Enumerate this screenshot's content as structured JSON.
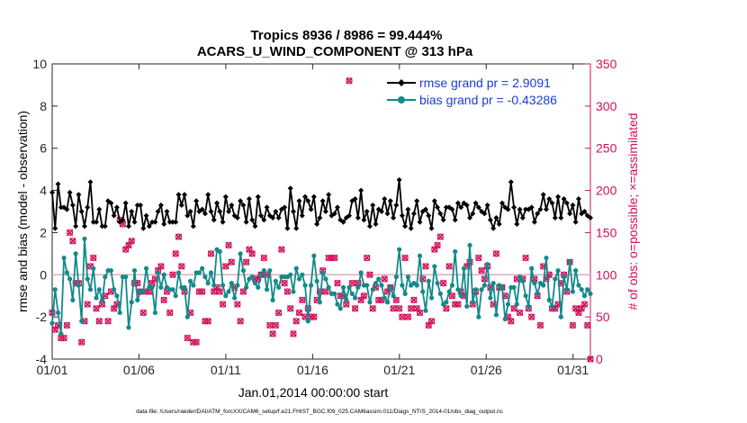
{
  "chart_data": {
    "type": "line",
    "title": "Tropics 8936 / 8986 = 99.444%",
    "subtitle": "ACARS_U_WIND_COMPONENT @ 313 hPa",
    "xlabel": "Jan.01,2014 00:00:00 start",
    "ylabel_left": "rmse and bias (model - observation)",
    "ylabel_right": "# of obs: o=possible; ×=assimilated",
    "footnote": "data file: /Users/raeder/DAI/ATM_forcXX/CAM6_setup/f.e21.FHIST_BGC.f09_025.CAM6assim.011/Diags_NTrS_2014-01/obs_diag_output.nc",
    "x_range": [
      1,
      32
    ],
    "xticks": [
      1,
      6,
      11,
      16,
      21,
      26,
      31
    ],
    "xtick_labels": [
      "01/01",
      "01/06",
      "01/11",
      "01/16",
      "01/21",
      "01/26",
      "01/31"
    ],
    "ylim_left": [
      -4,
      10
    ],
    "yticks_left": [
      -4,
      -2,
      0,
      2,
      4,
      6,
      8,
      10
    ],
    "ylim_right": [
      0,
      350
    ],
    "yticks_right": [
      0,
      50,
      100,
      150,
      200,
      250,
      300,
      350
    ],
    "zero_line": 0,
    "obs_reference_line": 100,
    "legend_position": "top-right",
    "colors": {
      "rmse": "#000000",
      "bias": "#138a8a",
      "obs": "#d0105a",
      "right_axis": "#d0105a",
      "legend_text": "#1a3dd6"
    },
    "series": [
      {
        "name": "rmse grand pr = 2.9091",
        "marker": "diamond",
        "color": "#000000",
        "values": [
          3.9,
          2.2,
          4.3,
          3.2,
          3.2,
          3.1,
          3.9,
          3.3,
          2.3,
          3.8,
          3.0,
          2.3,
          3.2,
          4.4,
          2.5,
          2.5,
          3.1,
          2.3,
          2.3,
          3.5,
          3.4,
          2.8,
          3.2,
          2.5,
          2.6,
          3.4,
          2.3,
          3.0,
          2.5,
          3.3,
          3.3,
          2.2,
          2.8,
          2.3,
          2.5,
          2.5,
          3.0,
          3.3,
          2.4,
          3.0,
          2.5,
          2.5,
          2.5,
          3.8,
          3.3,
          3.8,
          2.8,
          3.0,
          2.3,
          3.5,
          3.0,
          3.1,
          2.9,
          3.8,
          3.0,
          2.6,
          3.4,
          3.0,
          2.5,
          3.7,
          3.0,
          3.3,
          2.8,
          2.7,
          3.5,
          3.3,
          2.5,
          3.6,
          2.6,
          2.3,
          3.7,
          2.8,
          2.6,
          3.2,
          2.8,
          2.7,
          3.0,
          2.7,
          3.1,
          3.2,
          2.2,
          4.1,
          3.0,
          2.2,
          3.5,
          2.8,
          3.7,
          3.5,
          3.1,
          3.7,
          2.4,
          2.7,
          3.5,
          3.0,
          3.8,
          2.8,
          2.9,
          3.2,
          2.6,
          2.5,
          2.7,
          2.8,
          3.5,
          3.6,
          2.7,
          4.0,
          2.6,
          3.0,
          2.3,
          3.3,
          2.4,
          3.1,
          3.0,
          3.6,
          2.9,
          3.5,
          2.7,
          3.3,
          4.5,
          2.8,
          2.3,
          3.1,
          2.2,
          2.9,
          3.5,
          2.5,
          3.0,
          3.1,
          2.8,
          2.2,
          3.5,
          3.2,
          2.9,
          2.6,
          3.2,
          3.2,
          3.1,
          2.6,
          3.4,
          3.2,
          3.4,
          3.3,
          2.7,
          2.9,
          3.4,
          3.2,
          3.0,
          2.9,
          3.3,
          2.6,
          2.2,
          2.7,
          2.4,
          3.4,
          3.2,
          3.1,
          4.4,
          3.2,
          2.4,
          3.1,
          2.7,
          3.1,
          3.1,
          3.2,
          2.5,
          2.9,
          3.1,
          3.8,
          3.1,
          3.6,
          3.4,
          2.7,
          3.7,
          2.7,
          3.6,
          3.4,
          2.9,
          3.3,
          2.5,
          3.6,
          2.9,
          3.0,
          2.8,
          2.7
        ]
      },
      {
        "name": "bias grand pr = -0.43286",
        "marker": "circle",
        "color": "#138a8a",
        "values": [
          -2.3,
          -0.7,
          -1.8,
          -2.8,
          0.8,
          0.1,
          -0.2,
          -1.2,
          1.0,
          -0.5,
          -2.2,
          1.7,
          -0.2,
          -0.7,
          0.3,
          -1.1,
          -0.7,
          -1.2,
          -0.1,
          0.2,
          0.2,
          -0.7,
          -1.0,
          -1.8,
          -0.1,
          -0.1,
          -2.5,
          -1.3,
          0.2,
          -1.2,
          -0.8,
          -0.8,
          0.3,
          -0.6,
          -0.6,
          -1.8,
          0.1,
          -0.6,
          0.0,
          -0.6,
          -0.7,
          -0.7,
          -1.0,
          0.1,
          -0.6,
          -0.6,
          -2.0,
          -0.3,
          -0.5,
          0.1,
          0.1,
          0.3,
          -0.1,
          -0.4,
          0.1,
          -0.5,
          1.2,
          1.1,
          -0.5,
          -1.0,
          -0.8,
          -0.4,
          -1.1,
          -0.5,
          1.0,
          0.2,
          -0.6,
          -0.2,
          -0.1,
          -0.4,
          -0.6,
          0.0,
          0.2,
          -0.7,
          0.2,
          -1.2,
          -0.3,
          -0.6,
          -0.1,
          -0.1,
          -0.1,
          0.0,
          -0.8,
          0.3,
          -0.2,
          0.0,
          -0.5,
          -2.2,
          -0.5,
          0.9,
          -0.3,
          -1.3,
          0.1,
          -0.2,
          -0.6,
          -0.9,
          -0.9,
          -1.4,
          -1.6,
          -0.6,
          -1.2,
          -0.6,
          -0.9,
          -1.1,
          -0.6,
          0.1,
          -0.5,
          -0.5,
          -1.3,
          -0.7,
          -0.4,
          -0.2,
          -0.5,
          -1.1,
          -1.3,
          -0.6,
          -1.0,
          -0.1,
          1.2,
          -0.5,
          -0.9,
          -0.1,
          -0.5,
          -0.4,
          -0.5,
          0.9,
          -0.8,
          -1.7,
          -0.3,
          -1.1,
          0.4,
          -0.4,
          -0.9,
          -1.4,
          -1.3,
          -0.8,
          -0.5,
          1.1,
          -0.7,
          -1.0,
          0.3,
          -1.5,
          1.4,
          -1.3,
          -0.7,
          -2.0,
          -0.7,
          -0.5,
          0.5,
          -1.1,
          -0.4,
          -1.9,
          -0.5,
          -0.6,
          -2.1,
          -1.4,
          -0.6,
          -0.6,
          -1.4,
          -0.1,
          -0.3,
          -1.0,
          -1.5,
          0.3,
          -0.4,
          -0.9,
          -0.4,
          -0.5,
          0.8,
          -1.2,
          -1.5,
          -0.2,
          0.2,
          -2.0,
          -0.1,
          -0.7,
          0.6,
          -0.8,
          0.2,
          -0.5,
          -0.7,
          -1.0,
          -0.7,
          -0.9
        ]
      }
    ],
    "obs_counts": [
      55,
      35,
      40,
      25,
      25,
      40,
      150,
      140,
      90,
      90,
      20,
      45,
      65,
      110,
      120,
      60,
      45,
      65,
      75,
      45,
      80,
      60,
      65,
      165,
      160,
      130,
      135,
      140,
      90,
      90,
      80,
      55,
      80,
      80,
      90,
      95,
      105,
      110,
      70,
      80,
      55,
      100,
      125,
      145,
      110,
      80,
      25,
      55,
      20,
      20,
      80,
      80,
      45,
      45,
      125,
      80,
      85,
      80,
      65,
      110,
      135,
      115,
      85,
      65,
      45,
      80,
      115,
      130,
      125,
      95,
      95,
      100,
      120,
      100,
      40,
      30,
      40,
      55,
      130,
      90,
      80,
      60,
      30,
      45,
      55,
      70,
      50,
      60,
      50,
      50,
      70,
      80,
      105,
      80,
      120,
      120,
      120,
      90,
      75,
      75,
      65,
      330,
      90,
      60,
      90,
      70,
      75,
      120,
      100,
      60,
      85,
      70,
      70,
      95,
      80,
      85,
      60,
      70,
      60,
      50,
      120,
      50,
      60,
      70,
      60,
      55,
      95,
      110,
      40,
      45,
      130,
      135,
      145,
      90,
      60,
      110,
      75,
      65,
      65,
      80,
      75,
      110,
      115,
      65,
      80,
      120,
      105,
      95,
      110,
      85,
      65,
      125,
      85,
      85,
      75,
      50,
      45,
      60,
      95,
      55,
      95,
      120,
      60,
      50,
      95,
      75,
      40,
      110,
      95,
      100,
      60,
      60,
      65,
      90,
      100,
      80,
      115,
      40,
      60,
      55,
      60,
      65,
      40,
      0
    ]
  }
}
